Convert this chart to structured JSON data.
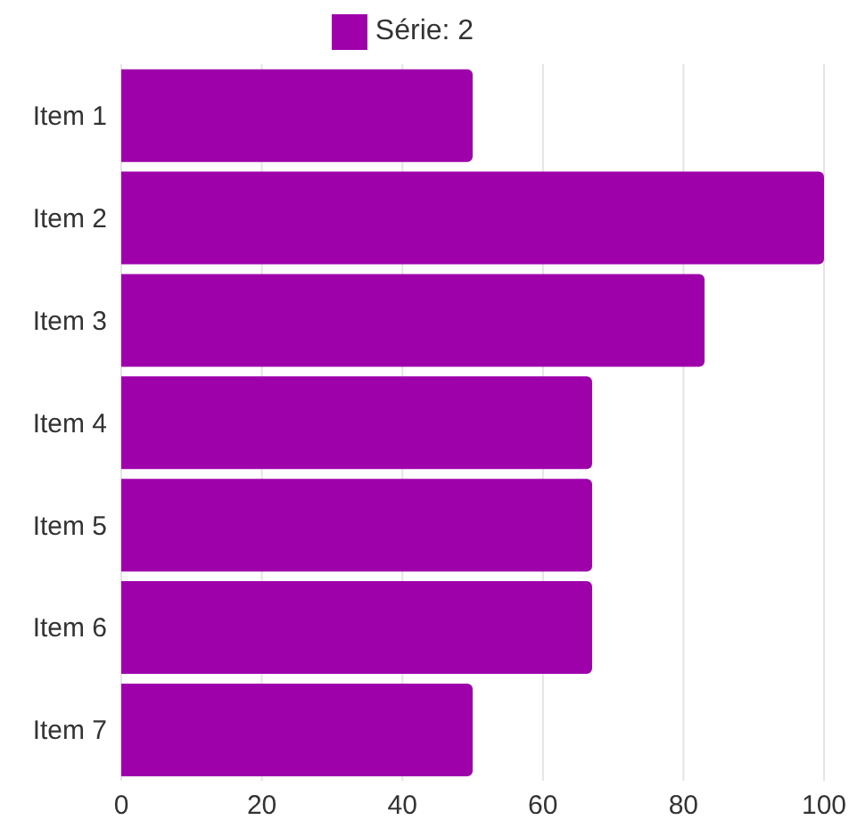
{
  "chart_data": {
    "type": "bar",
    "orientation": "horizontal",
    "categories": [
      "Item 1",
      "Item 2",
      "Item 3",
      "Item 4",
      "Item 5",
      "Item 6",
      "Item 7"
    ],
    "series": [
      {
        "name": "Série: 2",
        "color": "#9e00aa",
        "values": [
          50,
          100,
          83,
          67,
          67,
          67,
          50
        ]
      }
    ],
    "xlim": [
      0,
      100
    ],
    "xticks": [
      0,
      20,
      40,
      60,
      80,
      100
    ],
    "grid": "x",
    "legend": "top"
  }
}
